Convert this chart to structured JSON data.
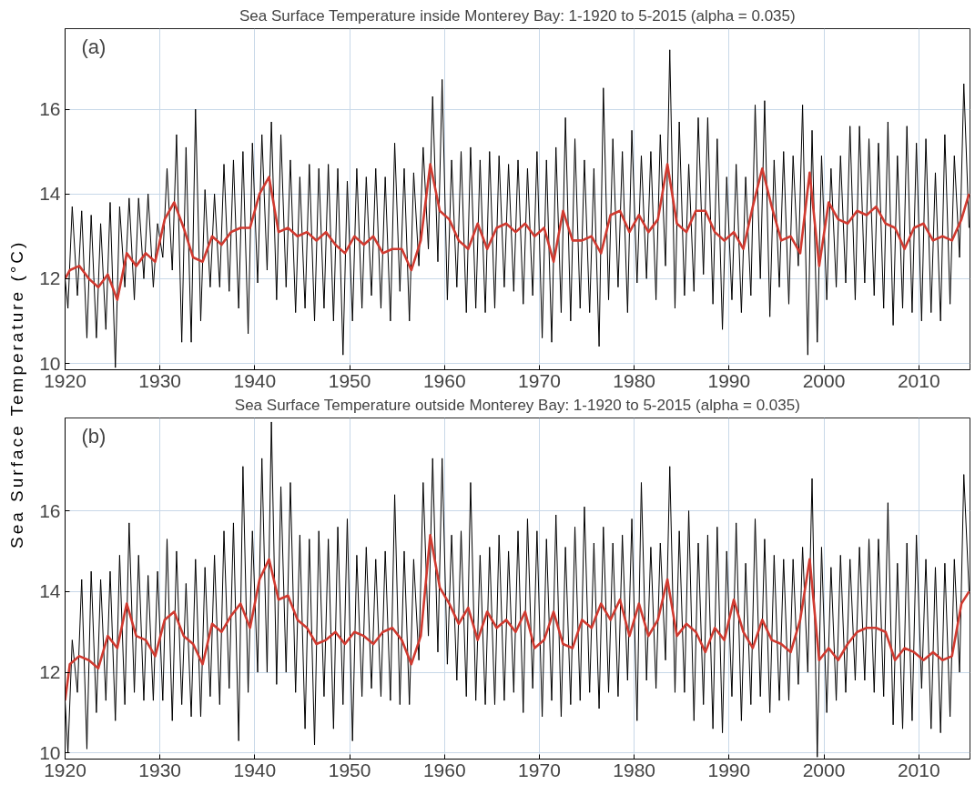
{
  "chart_data": [
    {
      "type": "line",
      "title": "Sea Surface Temperature inside Monterey Bay: 1-1920 to 5-2015 (alpha = 0.035)",
      "ylabel": "Sea Surface Temperature (°C)",
      "annotations": [
        "(a)"
      ],
      "xlim": [
        1920,
        2015.4
      ],
      "ylim": [
        9.85,
        17.9
      ],
      "xticks": [
        1920,
        1930,
        1940,
        1950,
        1960,
        1970,
        1980,
        1990,
        2000,
        2010
      ],
      "yticks": [
        10,
        12,
        14,
        16
      ],
      "grid": true,
      "series": [
        {
          "color": "#000000",
          "x": [
            1920.0,
            1920.3,
            1920.75,
            1921.3,
            1921.75,
            1922.3,
            1922.75,
            1923.3,
            1923.75,
            1924.3,
            1924.75,
            1925.3,
            1925.75,
            1926.3,
            1926.75,
            1927.3,
            1927.75,
            1928.3,
            1928.75,
            1929.3,
            1929.75,
            1930.3,
            1930.75,
            1931.3,
            1931.75,
            1932.3,
            1932.75,
            1933.3,
            1933.75,
            1934.3,
            1934.75,
            1935.3,
            1935.75,
            1936.3,
            1936.75,
            1937.3,
            1937.75,
            1938.3,
            1938.75,
            1939.3,
            1939.75,
            1940.3,
            1940.75,
            1941.3,
            1941.75,
            1942.3,
            1942.75,
            1943.3,
            1943.75,
            1944.3,
            1944.75,
            1945.3,
            1945.75,
            1946.3,
            1946.75,
            1947.3,
            1947.75,
            1948.3,
            1948.75,
            1949.3,
            1949.75,
            1950.3,
            1950.75,
            1951.3,
            1951.75,
            1952.3,
            1952.75,
            1953.3,
            1953.75,
            1954.3,
            1954.75,
            1955.3,
            1955.75,
            1956.3,
            1956.75,
            1957.3,
            1957.75,
            1958.3,
            1958.75,
            1959.3,
            1959.75,
            1960.3,
            1960.75,
            1961.3,
            1961.75,
            1962.3,
            1962.75,
            1963.3,
            1963.75,
            1964.3,
            1964.75,
            1965.3,
            1965.75,
            1966.3,
            1966.75,
            1967.3,
            1967.75,
            1968.3,
            1968.75,
            1969.3,
            1969.75,
            1970.3,
            1970.75,
            1971.3,
            1971.75,
            1972.3,
            1972.75,
            1973.3,
            1973.75,
            1974.3,
            1974.75,
            1975.3,
            1975.75,
            1976.3,
            1976.75,
            1977.3,
            1977.75,
            1978.3,
            1978.75,
            1979.3,
            1979.75,
            1980.3,
            1980.75,
            1981.3,
            1981.75,
            1982.3,
            1982.75,
            1983.3,
            1983.75,
            1984.3,
            1984.75,
            1985.3,
            1985.75,
            1986.3,
            1986.75,
            1987.3,
            1987.75,
            1988.3,
            1988.75,
            1989.3,
            1989.75,
            1990.3,
            1990.75,
            1991.3,
            1991.75,
            1992.3,
            1992.75,
            1993.3,
            1993.75,
            1994.3,
            1994.75,
            1995.3,
            1995.75,
            1996.3,
            1996.75,
            1997.3,
            1997.75,
            1998.3,
            1998.75,
            1999.3,
            1999.75,
            2000.3,
            2000.75,
            2001.3,
            2001.75,
            2002.3,
            2002.75,
            2003.3,
            2003.75,
            2004.3,
            2004.75,
            2005.3,
            2005.75,
            2006.3,
            2006.75,
            2007.3,
            2007.75,
            2008.3,
            2008.75,
            2009.3,
            2009.75,
            2010.3,
            2010.75,
            2011.3,
            2011.75,
            2012.3,
            2012.75,
            2013.3,
            2013.75,
            2014.3,
            2014.75,
            2015.3
          ],
          "values": [
            12.0,
            11.3,
            13.7,
            11.6,
            13.6,
            10.6,
            13.5,
            10.6,
            13.3,
            10.8,
            13.8,
            9.9,
            13.7,
            11.8,
            13.9,
            11.5,
            13.9,
            12.0,
            14.0,
            11.8,
            13.3,
            12.5,
            14.6,
            12.2,
            15.4,
            10.5,
            15.1,
            10.5,
            16.0,
            11.0,
            14.1,
            11.8,
            14.0,
            11.8,
            14.7,
            11.7,
            14.8,
            11.3,
            15.0,
            10.7,
            15.2,
            11.9,
            15.4,
            12.2,
            15.7,
            11.5,
            15.4,
            11.8,
            14.8,
            11.2,
            14.4,
            11.3,
            14.7,
            11.0,
            14.6,
            11.3,
            14.7,
            11.0,
            14.6,
            10.2,
            14.3,
            11.0,
            14.6,
            11.3,
            14.4,
            11.6,
            14.6,
            11.3,
            14.4,
            11.0,
            15.2,
            11.7,
            14.6,
            11.0,
            14.5,
            12.3,
            15.1,
            12.7,
            16.3,
            12.4,
            16.7,
            11.5,
            14.8,
            11.8,
            15.0,
            11.2,
            15.1,
            11.3,
            14.8,
            11.2,
            15.0,
            11.3,
            14.9,
            11.8,
            14.7,
            11.7,
            14.8,
            11.4,
            14.6,
            11.6,
            15.0,
            10.6,
            14.8,
            10.5,
            15.1,
            11.2,
            15.8,
            11.0,
            15.3,
            11.3,
            14.8,
            11.2,
            14.6,
            10.4,
            16.5,
            11.5,
            15.3,
            11.8,
            15.0,
            11.2,
            15.5,
            11.9,
            14.9,
            12.0,
            15.0,
            11.5,
            15.4,
            12.3,
            17.4,
            11.3,
            15.7,
            11.6,
            14.7,
            11.7,
            15.8,
            12.1,
            15.8,
            11.4,
            15.3,
            10.8,
            14.4,
            11.5,
            14.7,
            11.2,
            14.4,
            11.6,
            16.1,
            12.0,
            16.2,
            11.1,
            14.8,
            11.8,
            15.0,
            11.4,
            14.9,
            12.3,
            16.1,
            10.2,
            15.5,
            10.5,
            14.9,
            11.5,
            14.6,
            11.8,
            14.9,
            11.9,
            15.6,
            11.5,
            15.6,
            11.9,
            15.3,
            11.6,
            15.2,
            11.3,
            15.7,
            10.9,
            14.9,
            11.3,
            15.6,
            11.2,
            15.2,
            11.0,
            15.3,
            11.2,
            14.5,
            11.0,
            15.4,
            11.4,
            14.9,
            12.5,
            16.6,
            13.2
          ]
        },
        {
          "color": "#d03a30",
          "x": [
            1920.0,
            1920.5,
            1921.5,
            1922.5,
            1923.5,
            1924.5,
            1925.5,
            1926.5,
            1927.5,
            1928.5,
            1929.5,
            1930.5,
            1931.5,
            1932.5,
            1933.5,
            1934.5,
            1935.5,
            1936.5,
            1937.5,
            1938.5,
            1939.5,
            1940.5,
            1941.5,
            1942.5,
            1943.5,
            1944.5,
            1945.5,
            1946.5,
            1947.5,
            1948.5,
            1949.5,
            1950.5,
            1951.5,
            1952.5,
            1953.5,
            1954.5,
            1955.5,
            1956.5,
            1957.5,
            1958.5,
            1959.5,
            1960.5,
            1961.5,
            1962.5,
            1963.5,
            1964.5,
            1965.5,
            1966.5,
            1967.5,
            1968.5,
            1969.5,
            1970.5,
            1971.5,
            1972.5,
            1973.5,
            1974.5,
            1975.5,
            1976.5,
            1977.5,
            1978.5,
            1979.5,
            1980.5,
            1981.5,
            1982.5,
            1983.5,
            1984.5,
            1985.5,
            1986.5,
            1987.5,
            1988.5,
            1989.5,
            1990.5,
            1991.5,
            1992.5,
            1993.5,
            1994.5,
            1995.5,
            1996.5,
            1997.5,
            1998.5,
            1999.5,
            2000.5,
            2001.5,
            2002.5,
            2003.5,
            2004.5,
            2005.5,
            2006.5,
            2007.5,
            2008.5,
            2009.5,
            2010.5,
            2011.5,
            2012.5,
            2013.5,
            2014.5,
            2015.3
          ],
          "values": [
            12.0,
            12.2,
            12.3,
            12.0,
            11.8,
            12.1,
            11.5,
            12.6,
            12.3,
            12.6,
            12.4,
            13.4,
            13.8,
            13.2,
            12.5,
            12.4,
            13.0,
            12.8,
            13.1,
            13.2,
            13.2,
            14.0,
            14.4,
            13.1,
            13.2,
            13.0,
            13.1,
            12.9,
            13.1,
            12.8,
            12.6,
            13.0,
            12.8,
            13.0,
            12.6,
            12.7,
            12.7,
            12.2,
            12.9,
            14.7,
            13.6,
            13.4,
            12.9,
            12.7,
            13.3,
            12.7,
            13.2,
            13.3,
            13.1,
            13.3,
            13.0,
            13.2,
            12.4,
            13.6,
            12.9,
            12.9,
            13.0,
            12.6,
            13.5,
            13.6,
            13.1,
            13.5,
            13.1,
            13.4,
            14.7,
            13.3,
            13.1,
            13.6,
            13.6,
            13.1,
            12.9,
            13.1,
            12.7,
            13.7,
            14.6,
            13.7,
            12.9,
            13.0,
            12.6,
            14.5,
            12.3,
            13.8,
            13.4,
            13.3,
            13.6,
            13.5,
            13.7,
            13.3,
            13.2,
            12.7,
            13.2,
            13.3,
            12.9,
            13.0,
            12.9,
            13.4,
            14.0
          ]
        }
      ]
    },
    {
      "type": "line",
      "title": "Sea Surface Temperature outside Monterey Bay: 1-1920 to 5-2015 (alpha = 0.035)",
      "annotations": [
        "(b)"
      ],
      "xlim": [
        1920,
        2015.4
      ],
      "ylim": [
        9.85,
        18.3
      ],
      "xticks": [
        1920,
        1930,
        1940,
        1950,
        1960,
        1970,
        1980,
        1990,
        2000,
        2010
      ],
      "yticks": [
        10,
        12,
        14,
        16
      ],
      "grid": true,
      "series": [
        {
          "color": "#000000",
          "x": [
            1920.0,
            1920.3,
            1920.75,
            1921.3,
            1921.75,
            1922.3,
            1922.75,
            1923.3,
            1923.75,
            1924.3,
            1924.75,
            1925.3,
            1925.75,
            1926.3,
            1926.75,
            1927.3,
            1927.75,
            1928.3,
            1928.75,
            1929.3,
            1929.75,
            1930.3,
            1930.75,
            1931.3,
            1931.75,
            1932.3,
            1932.75,
            1933.3,
            1933.75,
            1934.3,
            1934.75,
            1935.3,
            1935.75,
            1936.3,
            1936.75,
            1937.3,
            1937.75,
            1938.3,
            1938.75,
            1939.3,
            1939.75,
            1940.3,
            1940.75,
            1941.3,
            1941.75,
            1942.3,
            1942.75,
            1943.3,
            1943.75,
            1944.3,
            1944.75,
            1945.3,
            1945.75,
            1946.3,
            1946.75,
            1947.3,
            1947.75,
            1948.3,
            1948.75,
            1949.3,
            1949.75,
            1950.3,
            1950.75,
            1951.3,
            1951.75,
            1952.3,
            1952.75,
            1953.3,
            1953.75,
            1954.3,
            1954.75,
            1955.3,
            1955.75,
            1956.3,
            1956.75,
            1957.3,
            1957.75,
            1958.3,
            1958.75,
            1959.3,
            1959.75,
            1960.3,
            1960.75,
            1961.3,
            1961.75,
            1962.3,
            1962.75,
            1963.3,
            1963.75,
            1964.3,
            1964.75,
            1965.3,
            1965.75,
            1966.3,
            1966.75,
            1967.3,
            1967.75,
            1968.3,
            1968.75,
            1969.3,
            1969.75,
            1970.3,
            1970.75,
            1971.3,
            1971.75,
            1972.3,
            1972.75,
            1973.3,
            1973.75,
            1974.3,
            1974.75,
            1975.3,
            1975.75,
            1976.3,
            1976.75,
            1977.3,
            1977.75,
            1978.3,
            1978.75,
            1979.3,
            1979.75,
            1980.3,
            1980.75,
            1981.3,
            1981.75,
            1982.3,
            1982.75,
            1983.3,
            1983.75,
            1984.3,
            1984.75,
            1985.3,
            1985.75,
            1986.3,
            1986.75,
            1987.3,
            1987.75,
            1988.3,
            1988.75,
            1989.3,
            1989.75,
            1990.3,
            1990.75,
            1991.3,
            1991.75,
            1992.3,
            1992.75,
            1993.3,
            1993.75,
            1994.3,
            1994.75,
            1995.3,
            1995.75,
            1996.3,
            1996.75,
            1997.3,
            1997.75,
            1998.3,
            1998.75,
            1999.3,
            1999.75,
            2000.3,
            2000.75,
            2001.3,
            2001.75,
            2002.3,
            2002.75,
            2003.3,
            2003.75,
            2004.3,
            2004.75,
            2005.3,
            2005.75,
            2006.3,
            2006.75,
            2007.3,
            2007.75,
            2008.3,
            2008.75,
            2009.3,
            2009.75,
            2010.3,
            2010.75,
            2011.3,
            2011.75,
            2012.3,
            2012.75,
            2013.3,
            2013.75,
            2014.3,
            2014.75,
            2015.3
          ],
          "values": [
            11.3,
            10.0,
            12.8,
            11.5,
            14.3,
            10.1,
            14.5,
            11.0,
            14.3,
            11.3,
            14.5,
            10.8,
            14.9,
            11.2,
            15.7,
            11.5,
            14.9,
            11.3,
            14.4,
            11.3,
            14.5,
            11.3,
            15.3,
            10.8,
            15.0,
            11.2,
            14.2,
            10.9,
            14.8,
            10.9,
            14.6,
            11.4,
            14.9,
            11.2,
            15.5,
            11.6,
            15.7,
            10.3,
            17.1,
            11.5,
            15.5,
            12.0,
            17.3,
            12.0,
            18.2,
            11.7,
            16.6,
            12.0,
            16.7,
            11.5,
            15.4,
            10.6,
            15.3,
            10.2,
            15.5,
            11.4,
            15.3,
            10.6,
            15.6,
            11.2,
            15.8,
            10.3,
            14.9,
            11.4,
            15.1,
            11.6,
            14.8,
            11.4,
            15.0,
            11.3,
            16.4,
            11.2,
            15.0,
            11.2,
            14.8,
            12.3,
            16.7,
            12.9,
            17.3,
            12.5,
            17.3,
            12.2,
            15.4,
            11.8,
            15.5,
            11.4,
            16.7,
            11.3,
            14.9,
            11.2,
            15.1,
            11.2,
            15.4,
            11.3,
            15.0,
            11.5,
            15.5,
            11.0,
            15.8,
            11.6,
            15.5,
            10.9,
            15.3,
            11.3,
            15.9,
            10.9,
            15.1,
            11.2,
            15.6,
            11.3,
            16.1,
            11.5,
            15.2,
            11.1,
            15.6,
            11.5,
            15.2,
            11.4,
            15.4,
            11.8,
            15.8,
            10.8,
            16.7,
            11.8,
            15.1,
            11.6,
            15.2,
            12.3,
            17.1,
            11.5,
            15.5,
            11.5,
            16.0,
            10.8,
            15.2,
            11.2,
            15.4,
            10.6,
            15.6,
            10.5,
            15.0,
            11.4,
            15.7,
            10.8,
            14.7,
            11.2,
            15.8,
            11.4,
            15.3,
            11.0,
            14.9,
            11.3,
            14.8,
            11.3,
            14.8,
            11.7,
            15.1,
            12.0,
            16.8,
            9.9,
            15.1,
            11.0,
            14.6,
            11.3,
            14.9,
            11.5,
            14.8,
            11.8,
            15.1,
            11.8,
            15.3,
            11.5,
            15.3,
            11.4,
            16.2,
            10.7,
            14.7,
            10.6,
            15.2,
            10.8,
            15.4,
            11.6,
            14.8,
            10.6,
            14.6,
            10.5,
            14.7,
            10.9,
            14.8,
            12.0,
            16.9,
            14.0
          ]
        },
        {
          "color": "#d03a30",
          "x": [
            1920.0,
            1920.5,
            1921.5,
            1922.5,
            1923.5,
            1924.5,
            1925.5,
            1926.5,
            1927.5,
            1928.5,
            1929.5,
            1930.5,
            1931.5,
            1932.5,
            1933.5,
            1934.5,
            1935.5,
            1936.5,
            1937.5,
            1938.5,
            1939.5,
            1940.5,
            1941.5,
            1942.5,
            1943.5,
            1944.5,
            1945.5,
            1946.5,
            1947.5,
            1948.5,
            1949.5,
            1950.5,
            1951.5,
            1952.5,
            1953.5,
            1954.5,
            1955.5,
            1956.5,
            1957.5,
            1958.5,
            1959.5,
            1960.5,
            1961.5,
            1962.5,
            1963.5,
            1964.5,
            1965.5,
            1966.5,
            1967.5,
            1968.5,
            1969.5,
            1970.5,
            1971.5,
            1972.5,
            1973.5,
            1974.5,
            1975.5,
            1976.5,
            1977.5,
            1978.5,
            1979.5,
            1980.5,
            1981.5,
            1982.5,
            1983.5,
            1984.5,
            1985.5,
            1986.5,
            1987.5,
            1988.5,
            1989.5,
            1990.5,
            1991.5,
            1992.5,
            1993.5,
            1994.5,
            1995.5,
            1996.5,
            1997.5,
            1998.5,
            1999.5,
            2000.5,
            2001.5,
            2002.5,
            2003.5,
            2004.5,
            2005.5,
            2006.5,
            2007.5,
            2008.5,
            2009.5,
            2010.5,
            2011.5,
            2012.5,
            2013.5,
            2014.5,
            2015.3
          ],
          "values": [
            11.3,
            12.2,
            12.4,
            12.3,
            12.1,
            12.9,
            12.6,
            13.7,
            12.9,
            12.8,
            12.4,
            13.3,
            13.5,
            12.9,
            12.7,
            12.2,
            13.2,
            13.0,
            13.4,
            13.7,
            13.1,
            14.3,
            14.8,
            13.8,
            13.9,
            13.3,
            13.1,
            12.7,
            12.8,
            13.0,
            12.7,
            13.0,
            12.9,
            12.7,
            13.0,
            13.1,
            12.8,
            12.2,
            12.9,
            15.4,
            14.1,
            13.7,
            13.2,
            13.6,
            12.8,
            13.5,
            13.1,
            13.3,
            13.0,
            13.5,
            12.6,
            12.8,
            13.5,
            12.7,
            12.6,
            13.3,
            13.1,
            13.7,
            13.3,
            13.8,
            12.9,
            13.7,
            12.9,
            13.3,
            14.3,
            12.9,
            13.2,
            13.0,
            12.5,
            13.1,
            12.8,
            13.8,
            13.0,
            12.6,
            13.3,
            12.8,
            12.7,
            12.5,
            13.3,
            14.8,
            12.3,
            12.6,
            12.3,
            12.7,
            13.0,
            13.1,
            13.1,
            13.0,
            12.3,
            12.6,
            12.5,
            12.3,
            12.5,
            12.3,
            12.4,
            13.7,
            14.0
          ]
        }
      ]
    }
  ]
}
